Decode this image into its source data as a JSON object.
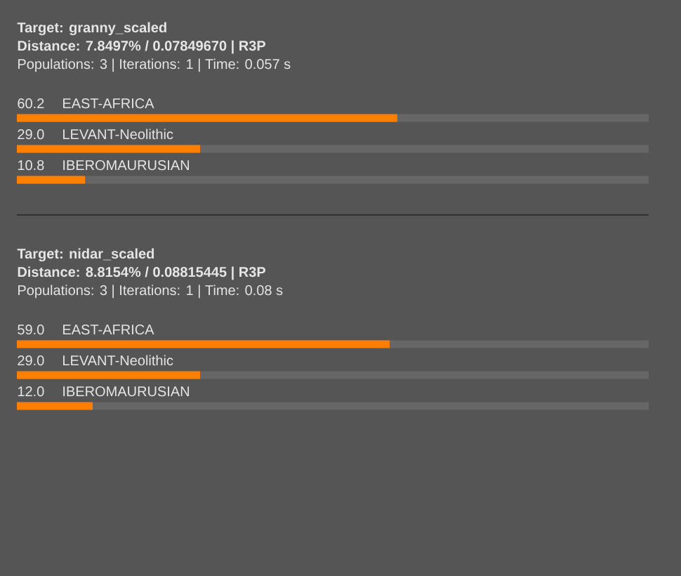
{
  "chart_data": [
    {
      "type": "bar",
      "orientation": "horizontal",
      "title": "Target: granny_scaled",
      "subtitle": "Distance: 7.8497% / 0.07849670 | R3P",
      "annotations": [
        "Populations: 3 | Iterations: 1 | Time: 0.057 s"
      ],
      "categories": [
        "EAST-AFRICA",
        "LEVANT-Neolithic",
        "IBEROMAURUSIAN"
      ],
      "values": [
        60.2,
        29.0,
        10.8
      ],
      "value_labels": [
        "60.2",
        "29.0",
        "10.8"
      ],
      "color": "#ff8000",
      "xlim": [
        0,
        100
      ],
      "tick_labels": false
    },
    {
      "type": "bar",
      "orientation": "horizontal",
      "title": "Target: nidar_scaled",
      "subtitle": "Distance: 8.8154% / 0.08815445 | R3P",
      "annotations": [
        "Populations: 3 | Iterations: 1 | Time: 0.08 s"
      ],
      "categories": [
        "EAST-AFRICA",
        "LEVANT-Neolithic",
        "IBEROMAURUSIAN"
      ],
      "values": [
        59.0,
        29.0,
        12.0
      ],
      "value_labels": [
        "59.0",
        "29.0",
        "12.0"
      ],
      "color": "#ff8000",
      "xlim": [
        0,
        100
      ],
      "tick_labels": false
    }
  ]
}
